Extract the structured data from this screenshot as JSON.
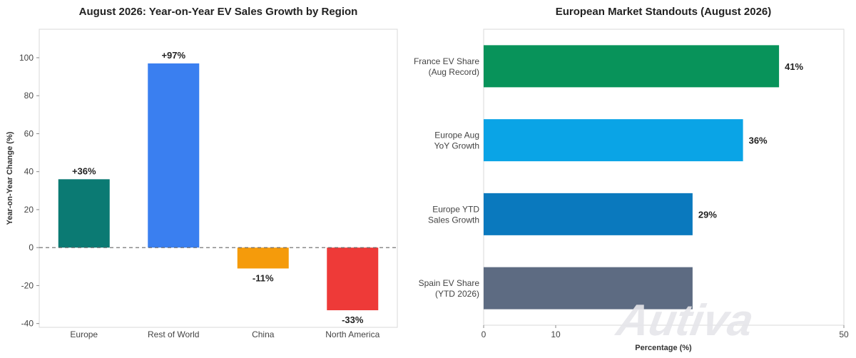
{
  "chart_data": [
    {
      "type": "bar",
      "title": "August 2026: Year-on-Year EV Sales Growth by Region",
      "xlabel": "",
      "ylabel": "Year-on-Year Change (%)",
      "categories": [
        "Europe",
        "Rest of World",
        "China",
        "North America"
      ],
      "values": [
        36,
        97,
        -11,
        -33
      ],
      "data_labels": [
        "+36%",
        "+97%",
        "-11%",
        "-33%"
      ],
      "colors": [
        "#0b7a73",
        "#3a7ff0",
        "#f59b0b",
        "#ee3a38"
      ],
      "ylim": [
        -42,
        115
      ],
      "yticks": [
        -40,
        -20,
        0,
        20,
        40,
        60,
        80,
        100
      ],
      "ytick_labels": [
        "-40",
        "-20",
        "0",
        "20",
        "40",
        "60",
        "80",
        "100"
      ],
      "reference_line": 0,
      "grid": false
    },
    {
      "type": "bar",
      "orientation": "horizontal",
      "title": "European Market Standouts (August 2026)",
      "xlabel": "Percentage (%)",
      "ylabel": "",
      "categories": [
        [
          "France EV Share",
          "(Aug Record)"
        ],
        [
          "Europe Aug",
          "YoY Growth"
        ],
        [
          "Europe YTD",
          "Sales Growth"
        ],
        [
          "Spain EV Share",
          "(YTD 2026)"
        ]
      ],
      "values": [
        41,
        36,
        29,
        29
      ],
      "data_labels": [
        "41%",
        "36%",
        "29%",
        ""
      ],
      "colors": [
        "#08935a",
        "#0aa4e6",
        "#0a79be",
        "#5d6b82"
      ],
      "xlim": [
        0,
        50
      ],
      "xticks": [
        0,
        10,
        50
      ],
      "xtick_labels": [
        "0",
        "10",
        "50"
      ],
      "grid": false
    }
  ],
  "watermark": {
    "text": "Autiva"
  }
}
